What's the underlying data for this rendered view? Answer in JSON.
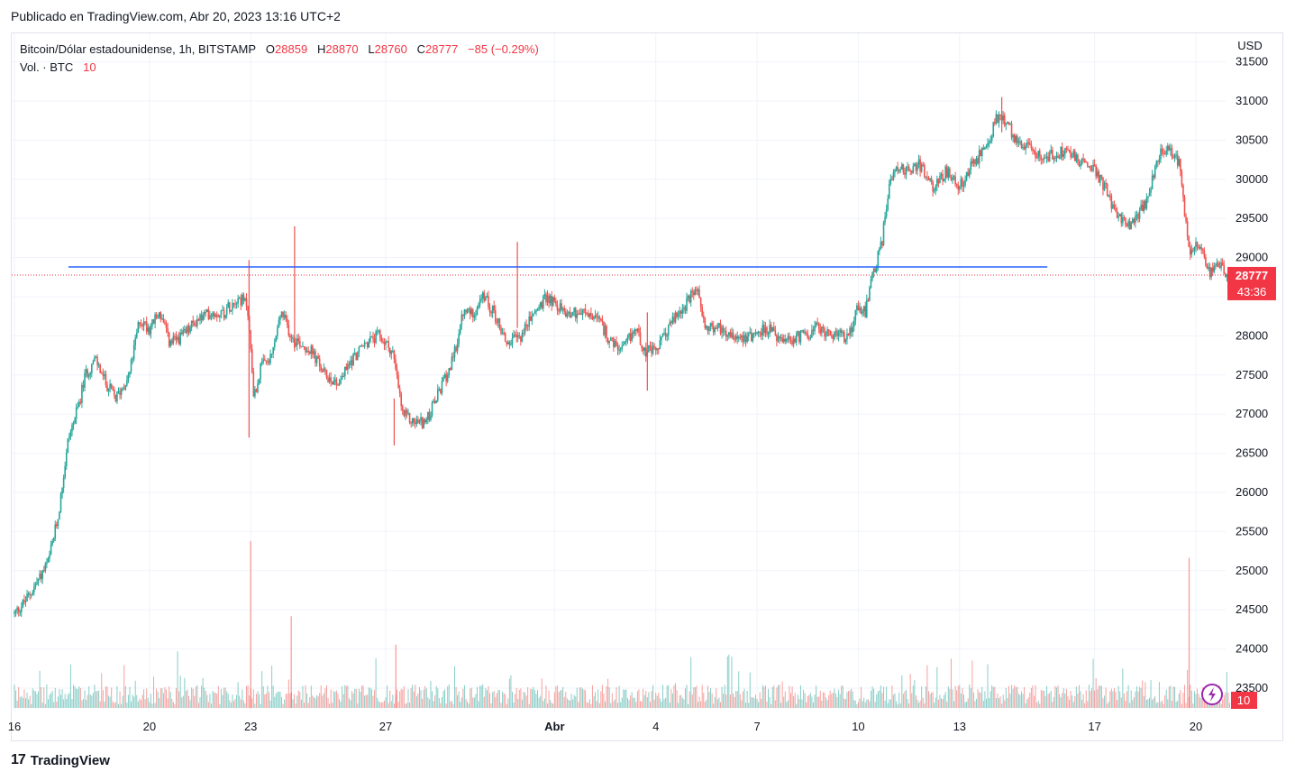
{
  "header": {
    "published": "Publicado en TradingView.com, Abr 20, 2023 13:16 UTC+2"
  },
  "legend": {
    "symbol": "Bitcoin/Dólar estadounidense, 1h, BITSTAMP",
    "o_label": "O",
    "o_value": "28859",
    "h_label": "H",
    "h_value": "28870",
    "l_label": "L",
    "l_value": "28760",
    "c_label": "C",
    "c_value": "28777",
    "change": "−85 (−0.29%)",
    "vol_label": "Vol. · BTC",
    "vol_value": "10"
  },
  "footer": {
    "brand": "TradingView",
    "logo_mark": "17"
  },
  "colors": {
    "up": "#26a69a",
    "down": "#ef5350",
    "line": "#2962ff",
    "price_tag": "#f23645"
  },
  "chart_data": {
    "type": "candlestick",
    "symbol": "Bitcoin/Dólar estadounidense",
    "interval": "1h",
    "exchange": "BITSTAMP",
    "currency_label": "USD",
    "y_ticks": [
      23500,
      24000,
      24500,
      25000,
      25500,
      26000,
      26500,
      27000,
      27500,
      28000,
      28500,
      29000,
      29500,
      30000,
      30500,
      31000,
      31500
    ],
    "y_tick_labels": [
      "23500",
      "24000",
      "24500",
      "25000",
      "25500",
      "26000",
      "26500",
      "27000",
      "27500",
      "28000",
      "28500",
      "29000",
      "29500",
      "30000",
      "30500",
      "31000",
      "31500"
    ],
    "ylim": [
      23300,
      31700
    ],
    "x_ticks": [
      {
        "label": "16",
        "day": 0
      },
      {
        "label": "20",
        "day": 4
      },
      {
        "label": "23",
        "day": 7
      },
      {
        "label": "27",
        "day": 11
      },
      {
        "label": "Abr",
        "day": 16
      },
      {
        "label": "4",
        "day": 19
      },
      {
        "label": "7",
        "day": 22
      },
      {
        "label": "10",
        "day": 25
      },
      {
        "label": "13",
        "day": 28
      },
      {
        "label": "17",
        "day": 32
      },
      {
        "label": "20",
        "day": 35
      }
    ],
    "xlim_days": [
      -0.05,
      36.2
    ],
    "price_path": [
      [
        0,
        24450
      ],
      [
        0.3,
        24600
      ],
      [
        0.6,
        24800
      ],
      [
        1,
        25100
      ],
      [
        1.3,
        25700
      ],
      [
        1.6,
        26700
      ],
      [
        1.9,
        27100
      ],
      [
        2.1,
        27500
      ],
      [
        2.4,
        27700
      ],
      [
        2.7,
        27400
      ],
      [
        3,
        27200
      ],
      [
        3.4,
        27500
      ],
      [
        3.7,
        28200
      ],
      [
        4,
        28100
      ],
      [
        4.3,
        28300
      ],
      [
        4.6,
        27900
      ],
      [
        5,
        28000
      ],
      [
        5.4,
        28200
      ],
      [
        5.8,
        28300
      ],
      [
        6.2,
        28300
      ],
      [
        6.6,
        28500
      ],
      [
        6.9,
        28400
      ],
      [
        7.1,
        27200
      ],
      [
        7.3,
        27600
      ],
      [
        7.6,
        27700
      ],
      [
        7.9,
        28300
      ],
      [
        8.2,
        28000
      ],
      [
        8.5,
        27900
      ],
      [
        8.8,
        27800
      ],
      [
        9.2,
        27500
      ],
      [
        9.6,
        27400
      ],
      [
        10,
        27700
      ],
      [
        10.4,
        27900
      ],
      [
        10.8,
        28000
      ],
      [
        11.2,
        27800
      ],
      [
        11.5,
        27000
      ],
      [
        11.8,
        26900
      ],
      [
        12.2,
        26900
      ],
      [
        12.6,
        27300
      ],
      [
        13,
        27700
      ],
      [
        13.3,
        28300
      ],
      [
        13.6,
        28300
      ],
      [
        13.9,
        28500
      ],
      [
        14.2,
        28300
      ],
      [
        14.6,
        27900
      ],
      [
        15,
        28000
      ],
      [
        15.4,
        28300
      ],
      [
        15.8,
        28500
      ],
      [
        16.3,
        28300
      ],
      [
        16.8,
        28300
      ],
      [
        17.3,
        28200
      ],
      [
        17.7,
        27900
      ],
      [
        18,
        27800
      ],
      [
        18.4,
        28100
      ],
      [
        18.7,
        27800
      ],
      [
        19,
        27800
      ],
      [
        19.5,
        28200
      ],
      [
        19.9,
        28400
      ],
      [
        20.2,
        28600
      ],
      [
        20.5,
        28100
      ],
      [
        20.9,
        28100
      ],
      [
        21.4,
        28000
      ],
      [
        21.8,
        28000
      ],
      [
        22.3,
        28100
      ],
      [
        22.8,
        27900
      ],
      [
        23.3,
        28000
      ],
      [
        23.8,
        28100
      ],
      [
        24.3,
        28000
      ],
      [
        24.7,
        28000
      ],
      [
        25,
        28400
      ],
      [
        25.2,
        28300
      ],
      [
        25.45,
        28800
      ],
      [
        25.7,
        29200
      ],
      [
        25.9,
        29900
      ],
      [
        26.1,
        30200
      ],
      [
        26.4,
        30100
      ],
      [
        26.8,
        30200
      ],
      [
        27.2,
        29900
      ],
      [
        27.6,
        30100
      ],
      [
        28,
        29900
      ],
      [
        28.4,
        30200
      ],
      [
        28.8,
        30400
      ],
      [
        29.1,
        30800
      ],
      [
        29.4,
        30700
      ],
      [
        29.7,
        30500
      ],
      [
        30,
        30400
      ],
      [
        30.4,
        30300
      ],
      [
        30.8,
        30300
      ],
      [
        31.2,
        30400
      ],
      [
        31.6,
        30200
      ],
      [
        31.9,
        30200
      ],
      [
        32.3,
        29900
      ],
      [
        32.7,
        29500
      ],
      [
        33.1,
        29400
      ],
      [
        33.5,
        29700
      ],
      [
        33.9,
        30300
      ],
      [
        34.2,
        30400
      ],
      [
        34.5,
        30200
      ],
      [
        34.8,
        29100
      ],
      [
        35.1,
        29200
      ],
      [
        35.4,
        28800
      ],
      [
        35.7,
        28900
      ],
      [
        36,
        28777
      ]
    ],
    "notable_wicks": [
      {
        "day": 6.95,
        "high": 28970,
        "low": 26700
      },
      {
        "day": 8.3,
        "high": 29400,
        "low": 27800
      },
      {
        "day": 11.25,
        "high": 27200,
        "low": 26600
      },
      {
        "day": 14.9,
        "high": 29200,
        "low": 28100
      },
      {
        "day": 18.75,
        "high": 28300,
        "low": 27300
      },
      {
        "day": 29.25,
        "high": 31050,
        "low": 30600
      }
    ],
    "horizontal_line": {
      "price": 28880,
      "from_day": 1.6,
      "to_day": 30.6
    },
    "last_price": {
      "label": "28777",
      "price": 28777,
      "countdown": "43:36"
    },
    "volume": {
      "last": "10",
      "spike_days": [
        7,
        8.2,
        11.3,
        34.8
      ],
      "spike_heights": [
        1.0,
        0.55,
        0.38,
        0.9
      ]
    }
  }
}
